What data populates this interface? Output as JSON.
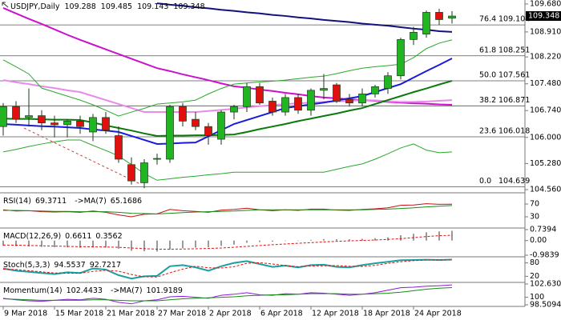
{
  "chart_data": [
    {
      "type": "candlestick",
      "title": "USDJPY,Daily",
      "categories": [
        "9 Mar 2018",
        null,
        null,
        null,
        "15 Mar 2018",
        null,
        null,
        null,
        "21 Mar 2018",
        null,
        null,
        null,
        "27 Mar 2018",
        null,
        null,
        null,
        "2 Apr 2018",
        null,
        null,
        null,
        "6 Apr 2018",
        null,
        null,
        null,
        "12 Apr 2018",
        null,
        null,
        null,
        "18 Apr 2018",
        null,
        null,
        null,
        "24 Apr 2018",
        null,
        null,
        null
      ],
      "candles": {
        "open": [
          106.3,
          106.85,
          106.55,
          106.6,
          106.4,
          106.35,
          106.45,
          106.15,
          106.55,
          106.05,
          105.25,
          104.75,
          105.4,
          105.4,
          106.85,
          106.5,
          106.3,
          105.95,
          106.7,
          106.85,
          107.4,
          107.0,
          106.7,
          107.1,
          106.75,
          107.3,
          107.45,
          107.05,
          106.95,
          107.2,
          107.35,
          107.7,
          108.7,
          108.85,
          109.45,
          109.288
        ],
        "high": [
          106.95,
          107.0,
          107.35,
          106.75,
          106.6,
          106.5,
          106.6,
          106.65,
          106.7,
          106.3,
          105.45,
          105.4,
          105.55,
          106.9,
          106.95,
          106.7,
          106.4,
          106.75,
          106.9,
          107.5,
          107.5,
          107.1,
          107.2,
          107.2,
          107.35,
          107.75,
          107.5,
          107.2,
          107.35,
          107.45,
          107.8,
          108.75,
          109.05,
          109.5,
          109.55,
          109.485
        ],
        "low": [
          106.05,
          106.4,
          106.3,
          106.2,
          106.0,
          106.0,
          106.1,
          105.9,
          106.1,
          105.3,
          104.7,
          104.6,
          105.25,
          105.3,
          106.3,
          106.2,
          105.8,
          105.8,
          106.5,
          106.7,
          106.9,
          106.6,
          106.6,
          106.65,
          106.6,
          107.05,
          106.95,
          106.85,
          106.85,
          107.1,
          107.2,
          107.6,
          108.55,
          108.75,
          109.1,
          109.143
        ],
        "close": [
          106.85,
          106.5,
          106.6,
          106.4,
          106.35,
          106.45,
          106.3,
          106.55,
          106.2,
          105.4,
          104.8,
          105.3,
          105.42,
          106.85,
          106.45,
          106.3,
          106.05,
          106.7,
          106.85,
          107.4,
          106.95,
          106.7,
          107.1,
          106.75,
          107.3,
          107.35,
          107.0,
          106.95,
          107.2,
          107.4,
          107.7,
          108.7,
          108.9,
          109.45,
          109.25,
          109.348
        ]
      },
      "up_color": "#22b422",
      "down_color": "#e01010",
      "candle_outline": "#1a3a1a",
      "series": [
        {
          "color": "#12127a",
          "width": 2,
          "values": [
            null,
            null,
            null,
            null,
            null,
            null,
            null,
            null,
            null,
            null,
            null,
            null,
            109.7,
            109.66,
            109.63,
            109.59,
            109.56,
            109.52,
            109.49,
            109.45,
            109.42,
            109.38,
            109.35,
            109.31,
            109.28,
            109.24,
            109.21,
            109.18,
            109.14,
            109.11,
            109.08,
            109.04,
            109.0,
            108.97,
            108.93,
            108.91
          ]
        },
        {
          "color": "#cc10cc",
          "width": 2,
          "values": [
            109.57,
            109.42,
            109.27,
            109.13,
            108.98,
            108.83,
            108.69,
            108.56,
            108.43,
            108.3,
            108.17,
            108.04,
            107.91,
            107.83,
            107.74,
            107.66,
            107.58,
            107.49,
            107.41,
            107.37,
            107.32,
            107.28,
            107.23,
            107.19,
            107.14,
            107.1,
            107.08,
            107.05,
            107.03,
            107.01,
            106.98,
            106.96,
            106.94,
            106.93,
            106.91,
            106.9
          ]
        },
        {
          "color": "#e88ae8",
          "width": 2,
          "values": [
            107.58,
            107.52,
            107.47,
            107.41,
            107.36,
            107.3,
            107.25,
            107.14,
            107.03,
            106.92,
            106.81,
            106.7,
            106.7,
            106.7,
            106.7,
            106.7,
            106.73,
            106.76,
            106.79,
            106.83,
            106.86,
            106.89,
            106.92,
            106.94,
            106.96,
            106.98,
            106.99,
            107.01,
            107.03,
            107.02,
            107.0,
            106.98,
            106.98,
            106.99,
            107.01,
            107.03
          ]
        },
        {
          "color": "#1a1adc",
          "width": 2,
          "values": [
            106.37,
            106.35,
            106.33,
            106.31,
            106.3,
            106.28,
            106.26,
            106.22,
            106.19,
            106.15,
            106.04,
            105.93,
            105.82,
            105.83,
            105.85,
            105.86,
            106.03,
            106.2,
            106.37,
            106.48,
            106.59,
            106.7,
            106.81,
            106.86,
            106.91,
            106.96,
            107.02,
            107.08,
            107.14,
            107.25,
            107.36,
            107.47,
            107.65,
            107.83,
            108.0,
            108.18
          ]
        },
        {
          "color": "#0a7a0a",
          "width": 2,
          "values": [
            106.52,
            106.51,
            106.51,
            106.5,
            106.49,
            106.49,
            106.48,
            106.41,
            106.33,
            106.26,
            106.19,
            106.11,
            106.04,
            106.05,
            106.05,
            106.06,
            106.06,
            106.07,
            106.08,
            106.15,
            106.23,
            106.3,
            106.37,
            106.45,
            106.52,
            106.59,
            106.66,
            106.74,
            106.81,
            106.92,
            107.03,
            107.14,
            107.25,
            107.35,
            107.46,
            107.56
          ]
        },
        {
          "color": "#2aa82a",
          "width": 1,
          "values": [
            108.14,
            107.95,
            107.75,
            107.36,
            107.25,
            107.14,
            107.03,
            106.9,
            106.75,
            106.59,
            106.7,
            106.8,
            106.92,
            106.95,
            106.98,
            107.03,
            107.2,
            107.35,
            107.47,
            107.5,
            107.53,
            107.55,
            107.58,
            107.62,
            107.66,
            107.69,
            107.76,
            107.84,
            107.91,
            107.95,
            107.98,
            108.02,
            108.2,
            108.45,
            108.6,
            108.69
          ]
        },
        {
          "color": "#2aa82a",
          "width": 1,
          "values": [
            105.6,
            105.67,
            105.75,
            105.82,
            105.88,
            105.93,
            105.93,
            105.78,
            105.64,
            105.49,
            105.25,
            105.0,
            104.82,
            104.86,
            104.9,
            104.93,
            104.97,
            105.0,
            105.04,
            105.04,
            105.04,
            105.04,
            105.04,
            105.04,
            105.04,
            105.04,
            105.12,
            105.2,
            105.27,
            105.4,
            105.55,
            105.71,
            105.82,
            105.65,
            105.58,
            105.6
          ]
        }
      ],
      "fib_levels": [
        {
          "label": "76.4",
          "value": 109.104
        },
        {
          "label": "61.8",
          "value": 108.251
        },
        {
          "label": "50.0",
          "value": 107.561
        },
        {
          "label": "38.2",
          "value": 106.871
        },
        {
          "label": "23.6",
          "value": 106.018
        },
        {
          "label": "0.0",
          "value": 104.639
        }
      ],
      "ylim": [
        104.495,
        109.79
      ],
      "yticks": [
        {
          "value": 109.68,
          "label": "109.680"
        },
        {
          "value": 108.91,
          "label": "108.910"
        },
        {
          "value": 108.22,
          "label": "108.220"
        },
        {
          "value": 107.48,
          "label": "107.480"
        },
        {
          "value": 106.74,
          "label": "106.740"
        },
        {
          "value": 106.0,
          "label": "106.000"
        },
        {
          "value": 105.28,
          "label": "105.280"
        },
        {
          "value": 104.56,
          "label": "104.560"
        }
      ]
    },
    {
      "type": "line",
      "series": [
        {
          "name": "RSI(14)",
          "color": "#c81010",
          "width": 1,
          "values": [
            52,
            48,
            49,
            46,
            45,
            46,
            44,
            48,
            44,
            36,
            30,
            38,
            39,
            53,
            49,
            47,
            44,
            51,
            53,
            57,
            52,
            49,
            52,
            50,
            54,
            54,
            51,
            50,
            53,
            55,
            58,
            66,
            67,
            71,
            69,
            69.3711
          ]
        },
        {
          "name": "->MA(7)",
          "color": "#1a8a1a",
          "width": 1,
          "values": [
            50,
            50,
            49,
            48,
            47,
            47,
            46,
            46,
            46,
            44,
            41,
            40,
            39,
            41,
            43,
            45,
            46,
            47,
            48,
            50,
            52,
            52,
            52,
            52,
            52,
            52,
            52,
            52,
            52,
            53,
            54,
            56,
            58,
            61,
            63,
            65.1686
          ]
        }
      ],
      "ylim": [
        0,
        100
      ],
      "yticks": [
        70,
        30
      ]
    },
    {
      "type": "line",
      "title": "MACD(12,26,9)",
      "series": [
        {
          "color": "#9a9a9a",
          "style": "bar",
          "values": [
            -0.35,
            -0.38,
            -0.4,
            -0.42,
            -0.45,
            -0.46,
            -0.48,
            -0.46,
            -0.47,
            -0.55,
            -0.68,
            -0.72,
            -0.74,
            -0.6,
            -0.52,
            -0.47,
            -0.45,
            -0.36,
            -0.27,
            -0.15,
            -0.1,
            -0.07,
            -0.02,
            0.0,
            0.05,
            0.1,
            0.1,
            0.09,
            0.12,
            0.16,
            0.22,
            0.36,
            0.46,
            0.56,
            0.62,
            0.6611
          ]
        },
        {
          "color": "#e01010",
          "style": "dashed",
          "width": 1,
          "values": [
            -0.3,
            -0.31,
            -0.33,
            -0.35,
            -0.37,
            -0.39,
            -0.41,
            -0.42,
            -0.43,
            -0.45,
            -0.5,
            -0.54,
            -0.58,
            -0.58,
            -0.57,
            -0.55,
            -0.53,
            -0.5,
            -0.45,
            -0.39,
            -0.33,
            -0.28,
            -0.23,
            -0.18,
            -0.14,
            -0.09,
            -0.05,
            -0.02,
            0.01,
            0.04,
            0.08,
            0.13,
            0.2,
            0.27,
            0.33,
            0.3562
          ]
        }
      ],
      "ylim": [
        -0.9839,
        0.7394
      ],
      "yticks": [
        0.7394,
        {
          "value": 0,
          "label": "0.00"
        },
        -0.9839
      ]
    },
    {
      "type": "line",
      "title": "Stoch(5,3,3)",
      "series": [
        {
          "color": "#1aa0a0",
          "width": 2,
          "values": [
            55,
            45,
            40,
            35,
            30,
            38,
            35,
            55,
            50,
            25,
            10,
            20,
            22,
            65,
            70,
            60,
            45,
            65,
            80,
            88,
            75,
            62,
            68,
            60,
            70,
            72,
            62,
            60,
            70,
            78,
            85,
            92,
            93,
            94,
            93,
            94.5537
          ]
        },
        {
          "color": "#e01010",
          "style": "dashed",
          "width": 1,
          "values": [
            52,
            50,
            45,
            40,
            35,
            34,
            34,
            42,
            47,
            43,
            28,
            18,
            17,
            36,
            52,
            65,
            58,
            57,
            63,
            78,
            81,
            75,
            68,
            63,
            66,
            67,
            68,
            65,
            64,
            69,
            78,
            85,
            90,
            93,
            93,
            92.7217
          ]
        }
      ],
      "ylim": [
        0,
        100
      ],
      "yticks": [
        80,
        20
      ]
    },
    {
      "type": "line",
      "series": [
        {
          "name": "Momentum(14)",
          "color": "#8a1ad8",
          "width": 1,
          "values": [
            99.8,
            99.5,
            99.3,
            99.2,
            99.4,
            99.6,
            99.5,
            99.8,
            99.6,
            99.0,
            98.7,
            99.3,
            99.5,
            100.1,
            100.2,
            100.0,
            99.8,
            100.4,
            100.6,
            100.9,
            100.5,
            100.4,
            100.7,
            100.6,
            100.9,
            100.8,
            100.6,
            100.4,
            100.6,
            100.9,
            101.4,
            101.9,
            102.0,
            102.2,
            102.3,
            102.4433
          ]
        },
        {
          "name": "->MA(7)",
          "color": "#1a8a1a",
          "width": 1,
          "values": [
            99.7,
            99.6,
            99.5,
            99.4,
            99.4,
            99.4,
            99.4,
            99.5,
            99.5,
            99.4,
            99.3,
            99.3,
            99.3,
            99.5,
            99.7,
            99.8,
            99.9,
            100.0,
            100.1,
            100.3,
            100.4,
            100.5,
            100.5,
            100.6,
            100.7,
            100.7,
            100.7,
            100.6,
            100.6,
            100.7,
            100.8,
            101.0,
            101.3,
            101.6,
            101.8,
            101.9189
          ]
        }
      ],
      "ylim": [
        98.5094,
        102.6307
      ],
      "yticks": [
        102.6307,
        100,
        98.5094
      ]
    }
  ]
}
